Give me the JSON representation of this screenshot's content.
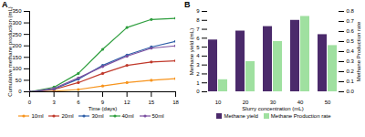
{
  "chart_data": [
    {
      "type": "line",
      "title": "A",
      "x": [
        0,
        3,
        6,
        9,
        12,
        15,
        18
      ],
      "xlim": [
        0,
        18
      ],
      "xticks": [
        0,
        3,
        6,
        9,
        12,
        15,
        18
      ],
      "ylim": [
        0,
        350
      ],
      "yticks": [
        0,
        50,
        100,
        150,
        200,
        250,
        300,
        350
      ],
      "x_label": "Time (days)",
      "y_label": "Cumulative methane production (mL)",
      "marker": "circle",
      "legend": "bottom",
      "series": [
        {
          "name": "10ml",
          "color": "#f7941d",
          "values": [
            0,
            3,
            10,
            25,
            40,
            50,
            57
          ]
        },
        {
          "name": "20ml",
          "color": "#c0392b",
          "values": [
            0,
            10,
            40,
            80,
            115,
            130,
            135
          ]
        },
        {
          "name": "30ml",
          "color": "#2e5fa8",
          "values": [
            0,
            12,
            55,
            115,
            160,
            195,
            220
          ]
        },
        {
          "name": "40ml",
          "color": "#2e9e3e",
          "values": [
            0,
            20,
            80,
            185,
            280,
            315,
            320
          ]
        },
        {
          "name": "50ml",
          "color": "#7b4fa0",
          "values": [
            0,
            15,
            60,
            110,
            155,
            190,
            200
          ]
        }
      ]
    },
    {
      "type": "bar",
      "title": "B",
      "categories": [
        "10",
        "20",
        "30",
        "40",
        "50"
      ],
      "x_label": "Slurry concentration (mL)",
      "y_label": "Methane yield (mL)",
      "y2_label": "Methane Production rate",
      "ylim": [
        0,
        9
      ],
      "yticks": [
        0,
        1,
        2,
        3,
        4,
        5,
        6,
        7,
        8,
        9
      ],
      "y2lim": [
        0,
        0.8
      ],
      "y2ticks": [
        0,
        0.1,
        0.2,
        0.3,
        0.4,
        0.5,
        0.6,
        0.7,
        0.8
      ],
      "legend": "bottom",
      "series": [
        {
          "name": "Methane yield",
          "color": "#4b2a6b",
          "values": [
            5.8,
            6.8,
            7.3,
            8.0,
            6.4
          ]
        },
        {
          "name": "Methane Production rate",
          "color": "#9fe0a0",
          "axis": "y2",
          "values": [
            0.12,
            0.3,
            0.5,
            0.75,
            0.46
          ]
        }
      ]
    }
  ]
}
